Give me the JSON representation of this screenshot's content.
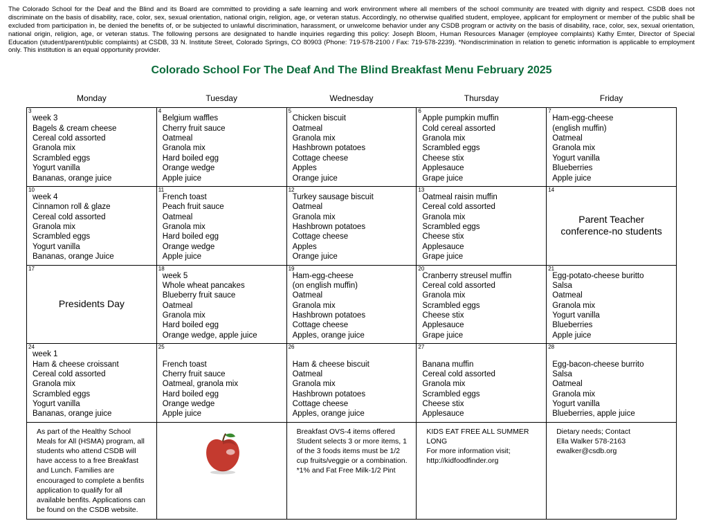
{
  "disclaimer": "The Colorado School for the Deaf and the Blind and its Board are committed to providing a safe learning and work environment where all members of the school community are treated with dignity and respect. CSDB does not discriminate on the basis of disability, race, color, sex, sexual orientation, national origin, religion, age, or veteran status. Accordingly, no otherwise qualified student, employee, applicant for employment or member of the public shall be excluded from participation in, be denied the benefits of, or be subjected to unlawful discrimination, harassment, or unwelcome behavior under any CSDB program or activity on the basis of disability, race, color, sex, sexual orientation, national origin, religion, age, or veteran status.  The following persons are designated to handle inquiries regarding this policy:  Joseph Bloom, Human Resources Manager (employee complaints) Kathy Emter, Director of Special Education (student/parent/public complaints) at CSDB, 33 N. Institute Street, Colorado Springs, CO 80903 (Phone:  719-578-2100 / Fax: 719-578-2239). *Nondiscrimination in relation to genetic information is applicable to employment only. This institution is an equal opportunity provider.",
  "title": "Colorado School For The Deaf And The Blind Breakfast Menu February 2025",
  "days": [
    "Monday",
    "Tuesday",
    "Wednesday",
    "Thursday",
    "Friday"
  ],
  "colors": {
    "title": "#0a6b3a",
    "border": "#000000",
    "apple_red": "#c43a2f",
    "apple_shadow": "#8a2520",
    "leaf": "#3a8a2f",
    "stem": "#5a3a1a"
  },
  "weeks": [
    [
      {
        "num": "3",
        "items": [
          "week 3",
          "Bagels & cream cheese",
          "Cereal cold assorted",
          "Granola mix",
          "Scrambled eggs",
          "Yogurt vanilla",
          "Bananas, orange juice"
        ]
      },
      {
        "num": "4",
        "items": [
          "Belgium waffles",
          "Cherry fruit sauce",
          "Oatmeal",
          "Granola mix",
          "Hard boiled egg",
          "Orange wedge",
          "Apple juice"
        ]
      },
      {
        "num": "5",
        "items": [
          "Chicken biscuit",
          "Oatmeal",
          "Granola mix",
          "Hashbrown potatoes",
          "Cottage cheese",
          "Apples",
          "Orange juice"
        ]
      },
      {
        "num": "6",
        "items": [
          "Apple pumpkin muffin",
          "Cold cereal assorted",
          "Granola mix",
          "Scrambled eggs",
          "Cheese stix",
          "Applesauce",
          "Grape juice"
        ]
      },
      {
        "num": "7",
        "items": [
          "Ham-egg-cheese",
          "(english muffin)",
          "Oatmeal",
          "Granola mix",
          "Yogurt vanilla",
          "Blueberries",
          "Apple juice"
        ]
      }
    ],
    [
      {
        "num": "10",
        "items": [
          "week 4",
          "Cinnamon roll & glaze",
          "Cereal cold assorted",
          "Granola mix",
          "Scrambled eggs",
          "Yogurt vanilla",
          "Bananas, orange Juice"
        ]
      },
      {
        "num": "11",
        "items": [
          "French toast",
          "Peach fruit sauce",
          "Oatmeal",
          "Granola mix",
          "Hard boiled egg",
          "Orange wedge",
          "Apple juice"
        ]
      },
      {
        "num": "12",
        "items": [
          "Turkey sausage biscuit",
          "Oatmeal",
          "Granola mix",
          "Hashbrown potatoes",
          "Cottage cheese",
          "Apples",
          "Orange juice"
        ]
      },
      {
        "num": "13",
        "items": [
          "Oatmeal raisin muffin",
          "Cereal cold assorted",
          "Granola mix",
          "Scrambled eggs",
          "Cheese stix",
          "Applesauce",
          "Grape juice"
        ]
      },
      {
        "num": "14",
        "center": true,
        "text": "Parent Teacher conference-no students"
      }
    ],
    [
      {
        "num": "17",
        "center": true,
        "text": "Presidents Day"
      },
      {
        "num": "18",
        "items": [
          "week 5",
          "Whole wheat pancakes",
          "Blueberry fruit sauce",
          "Oatmeal",
          "Granola mix",
          "Hard boiled egg",
          "Orange wedge, apple juice"
        ]
      },
      {
        "num": "19",
        "items": [
          "Ham-egg-cheese",
          "(on english muffin)",
          "Oatmeal",
          "Granola mix",
          "Hashbrown potatoes",
          "Cottage cheese",
          "Apples, orange juice"
        ]
      },
      {
        "num": "20",
        "items": [
          "Cranberry streusel muffin",
          "Cereal cold assorted",
          "Granola mix",
          "Scrambled eggs",
          "Cheese stix",
          "Applesauce",
          "Grape juice"
        ]
      },
      {
        "num": "21",
        "items": [
          "Egg-potato-cheese buritto",
          "Salsa",
          "Oatmeal",
          "Granola mix",
          "Yogurt vanilla",
          "Blueberries",
          "Apple juice"
        ]
      }
    ],
    [
      {
        "num": "24",
        "items": [
          "week 1",
          "Ham & cheese croissant",
          "Cereal cold assorted",
          "Granola mix",
          "Scrambled eggs",
          "Yogurt vanilla",
          "Bananas, orange juice"
        ]
      },
      {
        "num": "25",
        "items": [
          "",
          "French toast",
          "Cherry fruit sauce",
          "Oatmeal, granola mix",
          "Hard boiled egg",
          "Orange wedge",
          "Apple juice"
        ]
      },
      {
        "num": "26",
        "items": [
          "",
          "Ham & cheese biscuit",
          "Oatmeal",
          "Granola mix",
          "Hashbrown potatoes",
          "Cottage cheese",
          "Apples, orange juice"
        ]
      },
      {
        "num": "27",
        "items": [
          "",
          "Banana muffin",
          "Cereal cold assorted",
          "Granola mix",
          "Scrambled eggs",
          "Cheese stix",
          "Applesauce"
        ]
      },
      {
        "num": "28",
        "items": [
          "",
          "Egg-bacon-cheese burrito",
          "Salsa",
          "Oatmeal",
          "Granola mix",
          "Yogurt vanilla",
          "Blueberries, apple juice"
        ]
      }
    ]
  ],
  "footer": {
    "c1": "As part of the Healthy School Meals for All (HSMA) program, all students who attend CSDB will have access to a free Breakfast and Lunch. Families are encouraged to complete a benfits application to qualify for all available benfits. Applications can be found on the CSDB website.",
    "c3": "Breakfast OVS-4 items offered\nStudent selects 3 or more items, 1 of the 3 foods items must be 1/2 cup fruits/veggie or a combination.\n*1% and Fat Free Milk-1/2 Pint",
    "c4": "KIDS EAT FREE ALL SUMMER LONG\nFor more information visit;\nhttp://kidfoodfinder.org",
    "c5": "Dietary needs; Contact\nElla Walker 578-2163\newalker@csdb.org"
  }
}
